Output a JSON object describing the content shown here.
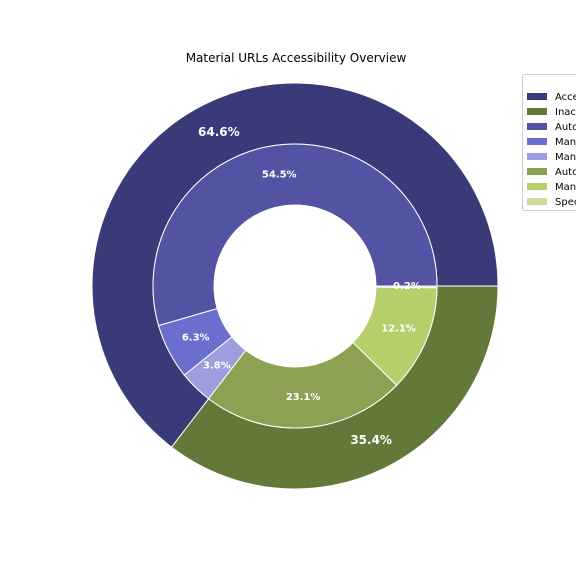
{
  "chart_data": {
    "type": "pie",
    "title": "Material URLs Accessibility Overview",
    "outer_ring": {
      "categories": [
        "Accessible",
        "Inaccessible"
      ],
      "values": [
        64.6,
        35.4
      ],
      "labels": [
        "64.6%",
        "35.4%"
      ],
      "colors": [
        "#393b79",
        "#637939"
      ]
    },
    "inner_ring": {
      "categories": [
        "Auto",
        "Man",
        "Man",
        "Auto",
        "Man",
        "Spec"
      ],
      "values": [
        54.5,
        6.3,
        3.8,
        23.1,
        12.1,
        0.2
      ],
      "labels": [
        "54.5%",
        "6.3%",
        "3.8%",
        "23.1%",
        "12.1%",
        "0.2%"
      ],
      "colors": [
        "#5254a3",
        "#6b6ecf",
        "#9c9ede",
        "#8ca252",
        "#b5cf6b",
        "#cedb9c"
      ]
    },
    "legend": {
      "placement": "top-right",
      "entries": [
        {
          "label": "Acce",
          "color": "#393b79"
        },
        {
          "label": "Inac",
          "color": "#637939"
        },
        {
          "label": "Auto",
          "color": "#5254a3"
        },
        {
          "label": "Man",
          "color": "#6b6ecf"
        },
        {
          "label": "Man",
          "color": "#9c9ede"
        },
        {
          "label": "Auto",
          "color": "#8ca252"
        },
        {
          "label": "Man",
          "color": "#b5cf6b"
        },
        {
          "label": "Spec",
          "color": "#cedb9c"
        }
      ]
    },
    "start_angle_deg": 0,
    "direction": "counterclockwise"
  }
}
